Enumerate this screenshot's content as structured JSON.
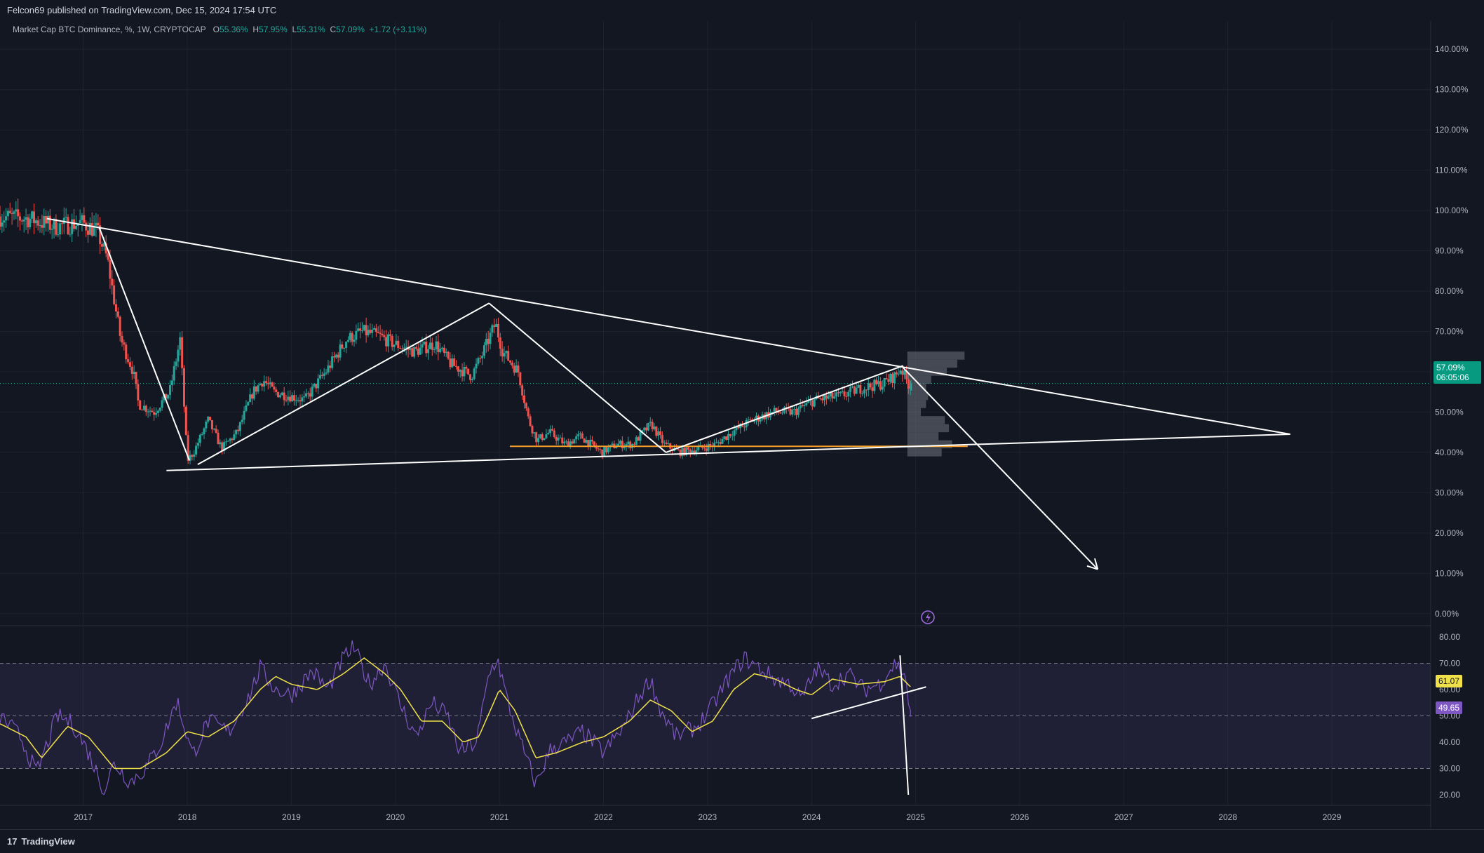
{
  "header": {
    "publisher": "Felcon69 published on TradingView.com, Dec 15, 2024 17:54 UTC"
  },
  "legend": {
    "symbol": "Market Cap BTC Dominance, %, 1W, CRYPTOCAP",
    "o_label": "O",
    "o_value": "55.36%",
    "h_label": "H",
    "h_value": "57.95%",
    "l_label": "L",
    "l_value": "55.31%",
    "c_label": "C",
    "c_value": "57.09%",
    "change": "+1.72 (+3.11%)"
  },
  "price_badge": {
    "price": "57.09%",
    "countdown": "06:05:06"
  },
  "rsi_badges": {
    "ma": "61.07",
    "rsi": "49.65"
  },
  "footer": {
    "brand": "TradingView",
    "mark": "17"
  },
  "colors": {
    "background": "#131722",
    "up": "#26a69a",
    "down": "#ef5350",
    "rsi_line": "#7e57c2",
    "rsi_ma": "#f0e14a",
    "support": "#f59d2a",
    "drawings": "#ffffff"
  },
  "chart_data": [
    {
      "type": "candlestick",
      "title": "Market Cap BTC Dominance, %, 1W, CRYPTOCAP",
      "y_ticks": [
        "140.00%",
        "130.00%",
        "120.00%",
        "110.00%",
        "100.00%",
        "90.00%",
        "80.00%",
        "70.00%",
        "60.00%",
        "50.00%",
        "40.00%",
        "30.00%",
        "20.00%",
        "10.00%",
        "0.00%"
      ],
      "y_tick_values": [
        140,
        130,
        120,
        110,
        100,
        90,
        80,
        70,
        60,
        50,
        40,
        30,
        20,
        10,
        0
      ],
      "x_ticks": [
        "2017",
        "2018",
        "2019",
        "2020",
        "2021",
        "2022",
        "2023",
        "2024",
        "2025",
        "2026",
        "2027",
        "2028",
        "2029"
      ],
      "x_tick_values": [
        2017,
        2018,
        2019,
        2020,
        2021,
        2022,
        2023,
        2024,
        2025,
        2026,
        2027,
        2028,
        2029
      ],
      "xlim": [
        2016.2,
        2029.95
      ],
      "ylim": [
        -3,
        147
      ],
      "anchors": [
        [
          2016.2,
          98.5
        ],
        [
          2016.5,
          98
        ],
        [
          2016.75,
          96
        ],
        [
          2017.0,
          97
        ],
        [
          2017.15,
          95
        ],
        [
          2017.25,
          88
        ],
        [
          2017.38,
          68
        ],
        [
          2017.5,
          60
        ],
        [
          2017.55,
          52
        ],
        [
          2017.7,
          50
        ],
        [
          2017.85,
          55
        ],
        [
          2017.95,
          68
        ],
        [
          2018.02,
          38
        ],
        [
          2018.08,
          40
        ],
        [
          2018.22,
          48
        ],
        [
          2018.35,
          41
        ],
        [
          2018.5,
          45
        ],
        [
          2018.65,
          55
        ],
        [
          2018.75,
          58
        ],
        [
          2018.85,
          55
        ],
        [
          2019.0,
          54
        ],
        [
          2019.15,
          53
        ],
        [
          2019.35,
          60
        ],
        [
          2019.55,
          68
        ],
        [
          2019.7,
          70
        ],
        [
          2019.85,
          69
        ],
        [
          2020.0,
          67
        ],
        [
          2020.2,
          65
        ],
        [
          2020.4,
          67
        ],
        [
          2020.55,
          62
        ],
        [
          2020.75,
          59
        ],
        [
          2020.85,
          64
        ],
        [
          2020.98,
          72
        ],
        [
          2021.05,
          65
        ],
        [
          2021.2,
          60
        ],
        [
          2021.3,
          48
        ],
        [
          2021.38,
          43
        ],
        [
          2021.5,
          45
        ],
        [
          2021.65,
          42
        ],
        [
          2021.8,
          44
        ],
        [
          2022.0,
          40
        ],
        [
          2022.15,
          42
        ],
        [
          2022.3,
          42
        ],
        [
          2022.4,
          45
        ],
        [
          2022.48,
          47
        ],
        [
          2022.6,
          42
        ],
        [
          2022.75,
          40
        ],
        [
          2022.95,
          41
        ],
        [
          2023.1,
          42
        ],
        [
          2023.25,
          45
        ],
        [
          2023.45,
          48
        ],
        [
          2023.65,
          50
        ],
        [
          2023.85,
          50
        ],
        [
          2024.05,
          53
        ],
        [
          2024.3,
          54
        ],
        [
          2024.5,
          56
        ],
        [
          2024.7,
          57
        ],
        [
          2024.82,
          59
        ],
        [
          2024.88,
          61
        ],
        [
          2024.91,
          59
        ],
        [
          2024.95,
          57
        ]
      ],
      "last": {
        "open": 55.36,
        "high": 57.95,
        "low": 55.31,
        "close": 57.09
      },
      "support_level": 41.5,
      "support_range": [
        2021.1,
        2025.5
      ],
      "trendlines": [
        {
          "name": "descending-resistance",
          "points": [
            [
              2016.65,
              98
            ],
            [
              2028.6,
              44.5
            ]
          ]
        },
        {
          "name": "ascending-support",
          "points": [
            [
              2017.8,
              35.5
            ],
            [
              2028.6,
              44.5
            ]
          ]
        }
      ],
      "pattern_lines": [
        [
          [
            2017.15,
            96
          ],
          [
            2018.02,
            38
          ]
        ],
        [
          [
            2018.1,
            37
          ],
          [
            2020.9,
            77
          ]
        ],
        [
          [
            2020.9,
            77
          ],
          [
            2022.6,
            40
          ]
        ],
        [
          [
            2022.6,
            40
          ],
          [
            2024.88,
            61.5
          ]
        ]
      ],
      "arrow": {
        "from": [
          2024.88,
          61
        ],
        "to": [
          2026.75,
          11
        ]
      },
      "volume_profile": {
        "x_start": 2024.92,
        "levels": [
          [
            64,
            2025.47
          ],
          [
            62,
            2025.4
          ],
          [
            60,
            2025.3
          ],
          [
            58,
            2025.15
          ],
          [
            56,
            2025.1
          ],
          [
            54,
            2025.12
          ],
          [
            52,
            2025.1
          ],
          [
            50,
            2025.05
          ],
          [
            48,
            2025.28
          ],
          [
            46,
            2025.32
          ],
          [
            44,
            2025.22
          ],
          [
            42,
            2025.35
          ],
          [
            40,
            2025.25
          ]
        ]
      }
    },
    {
      "type": "line",
      "title": "RSI",
      "y_ticks": [
        "80.00",
        "70.00",
        "60.00",
        "50.00",
        "40.00",
        "30.00",
        "20.00"
      ],
      "y_tick_values": [
        80,
        70,
        60,
        50,
        40,
        30,
        20
      ],
      "ylim": [
        16,
        84
      ],
      "bands": [
        70,
        50,
        30
      ],
      "series": [
        {
          "role": "rsi",
          "anchors": [
            [
              2016.2,
              50
            ],
            [
              2016.4,
              42
            ],
            [
              2016.55,
              28
            ],
            [
              2016.75,
              50
            ],
            [
              2016.9,
              47
            ],
            [
              2017.05,
              36
            ],
            [
              2017.2,
              22
            ],
            [
              2017.3,
              32
            ],
            [
              2017.45,
              25
            ],
            [
              2017.6,
              30
            ],
            [
              2017.75,
              40
            ],
            [
              2017.9,
              56
            ],
            [
              2018.05,
              35
            ],
            [
              2018.2,
              48
            ],
            [
              2018.4,
              44
            ],
            [
              2018.6,
              58
            ],
            [
              2018.7,
              68
            ],
            [
              2018.85,
              60
            ],
            [
              2019.0,
              58
            ],
            [
              2019.2,
              67
            ],
            [
              2019.35,
              60
            ],
            [
              2019.5,
              72
            ],
            [
              2019.6,
              76
            ],
            [
              2019.75,
              62
            ],
            [
              2019.9,
              70
            ],
            [
              2020.05,
              54
            ],
            [
              2020.2,
              42
            ],
            [
              2020.35,
              55
            ],
            [
              2020.5,
              50
            ],
            [
              2020.62,
              36
            ],
            [
              2020.78,
              40
            ],
            [
              2020.9,
              66
            ],
            [
              2020.98,
              72
            ],
            [
              2021.08,
              55
            ],
            [
              2021.2,
              40
            ],
            [
              2021.35,
              24
            ],
            [
              2021.5,
              38
            ],
            [
              2021.65,
              40
            ],
            [
              2021.8,
              44
            ],
            [
              2022.0,
              36
            ],
            [
              2022.2,
              46
            ],
            [
              2022.35,
              58
            ],
            [
              2022.45,
              64
            ],
            [
              2022.55,
              52
            ],
            [
              2022.7,
              42
            ],
            [
              2022.9,
              46
            ],
            [
              2023.05,
              54
            ],
            [
              2023.2,
              64
            ],
            [
              2023.35,
              72
            ],
            [
              2023.5,
              68
            ],
            [
              2023.65,
              64
            ],
            [
              2023.8,
              62
            ],
            [
              2023.9,
              56
            ],
            [
              2024.05,
              68
            ],
            [
              2024.2,
              62
            ],
            [
              2024.35,
              66
            ],
            [
              2024.5,
              60
            ],
            [
              2024.65,
              62
            ],
            [
              2024.8,
              70
            ],
            [
              2024.9,
              66
            ],
            [
              2024.95,
              49.65
            ]
          ]
        },
        {
          "role": "rsi-ma",
          "anchors": [
            [
              2016.2,
              47
            ],
            [
              2016.45,
              42
            ],
            [
              2016.6,
              34
            ],
            [
              2016.85,
              46
            ],
            [
              2017.05,
              42
            ],
            [
              2017.3,
              30
            ],
            [
              2017.55,
              30
            ],
            [
              2017.8,
              36
            ],
            [
              2018.0,
              44
            ],
            [
              2018.2,
              42
            ],
            [
              2018.45,
              48
            ],
            [
              2018.7,
              60
            ],
            [
              2018.85,
              65
            ],
            [
              2019.0,
              62
            ],
            [
              2019.25,
              60
            ],
            [
              2019.5,
              66
            ],
            [
              2019.7,
              72
            ],
            [
              2019.9,
              66
            ],
            [
              2020.05,
              60
            ],
            [
              2020.25,
              48
            ],
            [
              2020.45,
              48
            ],
            [
              2020.65,
              40
            ],
            [
              2020.8,
              42
            ],
            [
              2021.0,
              60
            ],
            [
              2021.15,
              52
            ],
            [
              2021.35,
              34
            ],
            [
              2021.55,
              36
            ],
            [
              2021.8,
              40
            ],
            [
              2022.0,
              42
            ],
            [
              2022.25,
              48
            ],
            [
              2022.45,
              56
            ],
            [
              2022.65,
              52
            ],
            [
              2022.85,
              44
            ],
            [
              2023.05,
              48
            ],
            [
              2023.25,
              60
            ],
            [
              2023.45,
              66
            ],
            [
              2023.65,
              64
            ],
            [
              2023.85,
              60
            ],
            [
              2024.0,
              58
            ],
            [
              2024.2,
              64
            ],
            [
              2024.45,
              62
            ],
            [
              2024.7,
              63
            ],
            [
              2024.85,
              65
            ],
            [
              2024.95,
              61.07
            ]
          ]
        }
      ],
      "trendlines": [
        {
          "name": "rsi-rising-support",
          "points": [
            [
              2024.0,
              49
            ],
            [
              2025.1,
              61
            ]
          ]
        },
        {
          "name": "rsi-drop-line",
          "points": [
            [
              2024.85,
              73
            ],
            [
              2024.93,
              20
            ]
          ]
        }
      ]
    }
  ]
}
